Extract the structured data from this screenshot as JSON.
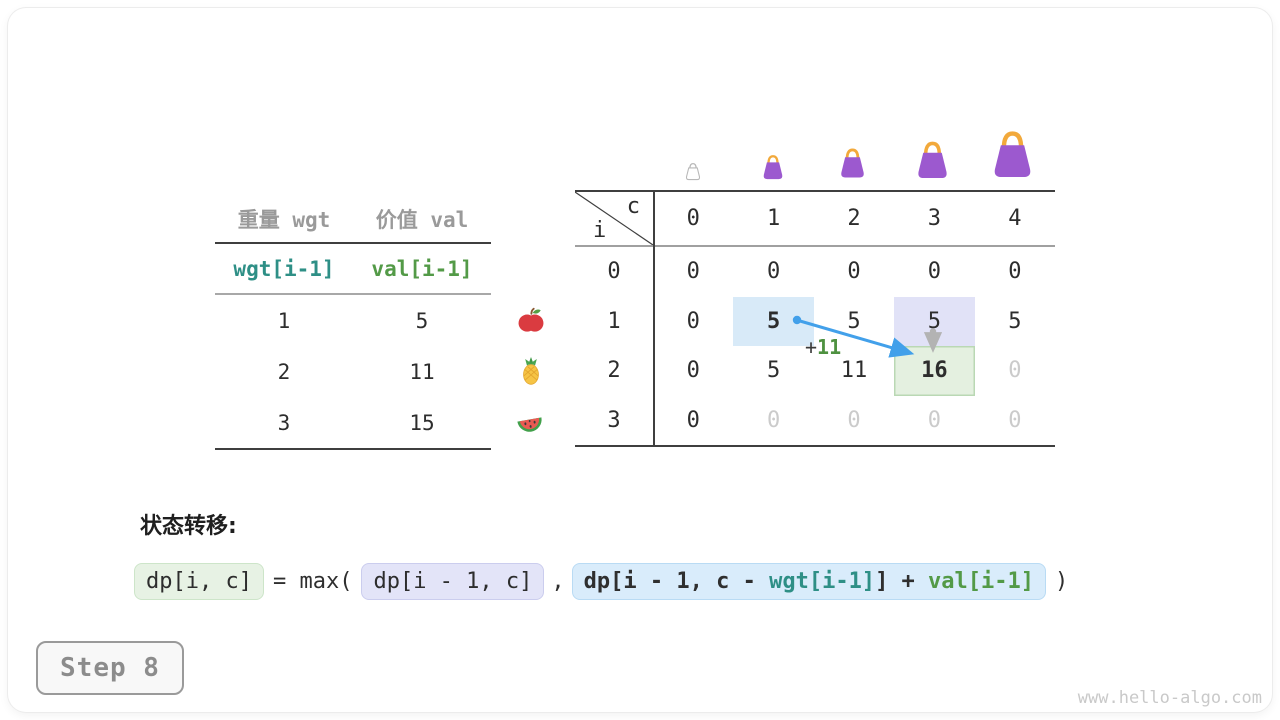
{
  "card": {
    "step_label": "Step 8",
    "watermark": "www.hello-algo.com"
  },
  "items_table": {
    "col_headers": [
      "重量 wgt",
      "价值 val"
    ],
    "index_row": [
      "wgt[i-1]",
      "val[i-1]"
    ],
    "rows": [
      [
        "1",
        "5"
      ],
      [
        "2",
        "11"
      ],
      [
        "3",
        "15"
      ]
    ],
    "fruit_icons": [
      "apple-icon",
      "pineapple-icon",
      "watermelon-icon"
    ]
  },
  "dp_table": {
    "corner_top": "c",
    "corner_bottom": "i",
    "col_headers": [
      "0",
      "1",
      "2",
      "3",
      "4"
    ],
    "row_headers": [
      "0",
      "1",
      "2",
      "3"
    ],
    "bag_icons": [
      "bag-tiny-icon",
      "bag-small-icon",
      "bag-medium-icon",
      "bag-large-icon",
      "bag-xlarge-icon"
    ],
    "rows": [
      [
        {
          "v": "0"
        },
        {
          "v": "0"
        },
        {
          "v": "0"
        },
        {
          "v": "0"
        },
        {
          "v": "0"
        }
      ],
      [
        {
          "v": "0"
        },
        {
          "v": "5",
          "style": "bold hl-blue"
        },
        {
          "v": "5"
        },
        {
          "v": "5",
          "style": "hl-purple"
        },
        {
          "v": "5"
        }
      ],
      [
        {
          "v": "0"
        },
        {
          "v": "5"
        },
        {
          "v": "11"
        },
        {
          "v": "16",
          "style": "bold hl-green"
        },
        {
          "v": "0",
          "style": "dim"
        }
      ],
      [
        {
          "v": "0"
        },
        {
          "v": "0",
          "style": "dim"
        },
        {
          "v": "0",
          "style": "dim"
        },
        {
          "v": "0",
          "style": "dim"
        },
        {
          "v": "0",
          "style": "dim"
        }
      ]
    ]
  },
  "annotation": {
    "plus": "+",
    "value": "11"
  },
  "transition": {
    "heading": "状态转移:",
    "lhs": "dp[i, c]",
    "operator": "= max(",
    "arg1": "dp[i - 1, c]",
    "separator": ",",
    "arg2_parts": [
      {
        "text": "dp[i - 1, c - ",
        "tone": "dark"
      },
      {
        "text": "wgt[i-1]",
        "tone": "teal"
      },
      {
        "text": "] + ",
        "tone": "dark"
      },
      {
        "text": "val[i-1]",
        "tone": "green"
      }
    ],
    "closing": ")"
  },
  "palette": {
    "teal": "#2e8f86",
    "green": "#539a47",
    "arrow_blue": "#42a0ea",
    "arrow_gray": "#b3b3b3",
    "highlight_blue": "#d8eaf8",
    "highlight_purple": "#e1e2f7",
    "highlight_green": "#e4f0e0",
    "dim_text": "#cbcbcb",
    "gray_text": "#9a9a9a",
    "bag_purple": "#9c59cf",
    "bag_handle": "#f2a93b"
  }
}
